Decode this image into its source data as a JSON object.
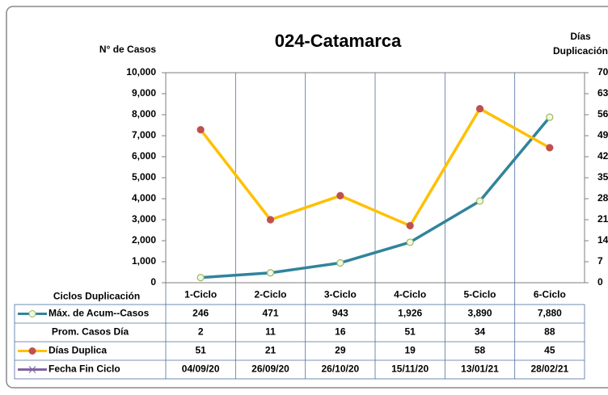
{
  "chart_data": {
    "type": "line",
    "title": "024-Catamarca",
    "y_label": "N° de Casos",
    "y2_label": [
      "Días",
      "Duplicación"
    ],
    "table_header": "Ciclos Duplicación",
    "categories": [
      "1-Ciclo",
      "2-Ciclo",
      "3-Ciclo",
      "4-Ciclo",
      "5-Ciclo",
      "6-Ciclo"
    ],
    "ylim": [
      0,
      10000
    ],
    "yticks": [
      0,
      {
        "value": 1000,
        "label": "1,000"
      },
      {
        "value": 2000,
        "label": "2,000"
      },
      {
        "value": 3000,
        "label": "3,000"
      },
      {
        "value": 4000,
        "label": "4,000"
      },
      {
        "value": 5000,
        "label": "5,000"
      },
      {
        "value": 6000,
        "label": "6,000"
      },
      {
        "value": 7000,
        "label": "7,000"
      },
      {
        "value": 8000,
        "label": "8,000"
      },
      {
        "value": 9000,
        "label": "9,000"
      },
      {
        "value": 10000,
        "label": "10,000"
      }
    ],
    "y2lim": [
      0,
      70
    ],
    "y2ticks": [
      0,
      7,
      14,
      21,
      28,
      35,
      42,
      49,
      56,
      63,
      70
    ],
    "series": [
      {
        "name": "Máx. de Acum--Casos",
        "color": "#31849b",
        "marker_fill": "#f2f7e6",
        "marker_stroke": "#9bbb59",
        "axis": "y",
        "values": [
          246,
          471,
          943,
          1926,
          3890,
          7880
        ],
        "value_labels": [
          "246",
          "471",
          "943",
          "1,926",
          "3,890",
          "7,880"
        ]
      },
      {
        "name": "Prom. Casos Día",
        "values": [
          2,
          11,
          16,
          51,
          34,
          88
        ]
      },
      {
        "name": "Días Duplica",
        "color": "#ffc000",
        "marker_fill": "#c0504d",
        "marker_stroke": "#c0504d",
        "axis": "y2",
        "values": [
          51,
          21,
          29,
          19,
          58,
          45
        ]
      },
      {
        "name": "Fecha Fin Ciclo",
        "color": "#8064a2",
        "labels": [
          "04/09/20",
          "26/09/20",
          "26/10/20",
          "15/11/20",
          "13/01/21",
          "28/02/21"
        ]
      }
    ]
  }
}
